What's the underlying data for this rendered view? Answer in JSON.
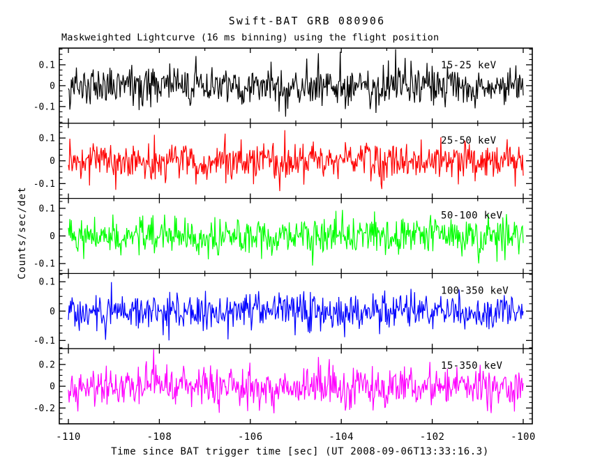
{
  "figure": {
    "title": "Swift-BAT GRB 080906",
    "subtitle": "Maskweighted Lightcurve (16 ms binning) using the flight position",
    "xlabel": "Time since BAT trigger time [sec] (UT 2008-09-06T13:33:16.3)",
    "ylabel": "Counts/sec/det",
    "background": "#ffffff",
    "frame_color": "#000000"
  },
  "chart_data": {
    "type": "line",
    "title": "Swift-BAT GRB 080906",
    "subtitle": "Maskweighted Lightcurve (16 ms binning) using the flight position",
    "xlabel": "Time since BAT trigger time [sec] (UT 2008-09-06T13:33:16.3)",
    "ylabel": "Counts/sec/det",
    "grid": false,
    "legend_position": "inside each panel, upper right, colored per band",
    "x": {
      "data_min": -110,
      "data_max": -100,
      "frame_min": -110.2,
      "frame_max": -99.8,
      "major_ticks": [
        -110,
        -108,
        -106,
        -104,
        -102,
        -100
      ],
      "major_tick_labels": [
        "-110",
        "-108",
        "-106",
        "-104",
        "-102",
        "-100"
      ],
      "minor_ticks": [
        -109,
        -107,
        -105,
        -103,
        -101
      ],
      "n_points": 625,
      "bin_ms": 16
    },
    "panels": [
      {
        "band": "15-25 keV",
        "color": "#000000",
        "ylim": [
          -0.18,
          0.18
        ],
        "ytick_values": [
          0.1,
          0,
          -0.1
        ],
        "ytick_labels": [
          "0.1",
          "0",
          "-0.1"
        ],
        "minor_step": 0.025,
        "signal": "zero-mean white noise, no burst visible",
        "noise_mean": 0,
        "noise_sigma": 0.047,
        "seed": 80906
      },
      {
        "band": "25-50 keV",
        "color": "#ff0000",
        "ylim": [
          -0.165,
          0.165
        ],
        "ytick_values": [
          0.1,
          0,
          -0.1
        ],
        "ytick_labels": [
          "0.1",
          "0",
          "-0.1"
        ],
        "minor_step": 0.025,
        "signal": "zero-mean white noise, no burst visible",
        "noise_mean": 0,
        "noise_sigma": 0.043,
        "seed": 80907
      },
      {
        "band": "50-100 keV",
        "color": "#00ff00",
        "ylim": [
          -0.136,
          0.136
        ],
        "ytick_values": [
          0.1,
          0,
          -0.1
        ],
        "ytick_labels": [
          "0.1",
          "0",
          "-0.1"
        ],
        "minor_step": 0.025,
        "signal": "zero-mean white noise, no burst visible",
        "noise_mean": 0,
        "noise_sigma": 0.035,
        "seed": 80908
      },
      {
        "band": "100-350 keV",
        "color": "#0000ff",
        "ylim": [
          -0.128,
          0.128
        ],
        "ytick_values": [
          0.1,
          0,
          -0.1
        ],
        "ytick_labels": [
          "0.1",
          "0",
          "-0.1"
        ],
        "minor_step": 0.025,
        "signal": "zero-mean white noise, no burst visible",
        "noise_mean": 0,
        "noise_sigma": 0.033,
        "seed": 80909
      },
      {
        "band": "15-350 keV",
        "color": "#ff00ff",
        "ylim": [
          -0.345,
          0.345
        ],
        "ytick_values": [
          0.2,
          0,
          -0.2
        ],
        "ytick_labels": [
          "0.2",
          "0",
          "-0.2"
        ],
        "minor_step": 0.05,
        "signal": "zero-mean white noise, no burst visible",
        "noise_mean": 0,
        "noise_sigma": 0.09,
        "seed": 80910
      }
    ]
  }
}
